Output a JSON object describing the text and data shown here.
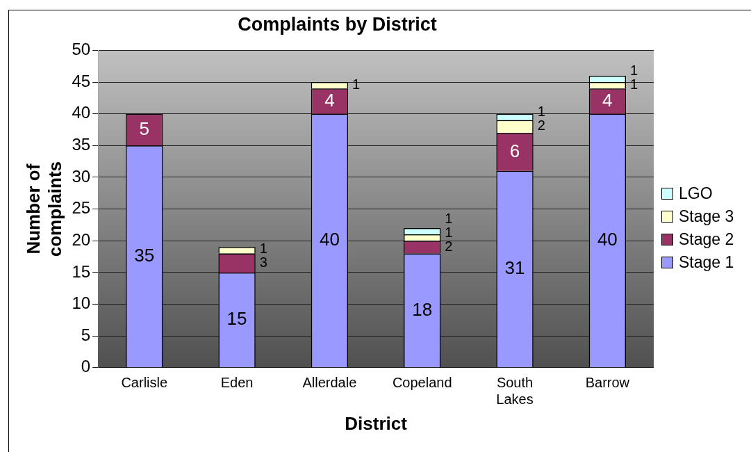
{
  "chart_data": {
    "type": "bar",
    "title": "Complaints by District",
    "xlabel": "District",
    "ylabel": "Number of complaints",
    "categories": [
      "Carlisle",
      "Eden",
      "Allerdale",
      "Copeland",
      "South Lakes",
      "Barrow"
    ],
    "stacked": true,
    "series": [
      {
        "name": "Stage 1",
        "color": "#9999ff",
        "values": [
          35,
          15,
          40,
          18,
          31,
          40
        ]
      },
      {
        "name": "Stage 2",
        "color": "#993366",
        "values": [
          5,
          3,
          4,
          2,
          6,
          4
        ]
      },
      {
        "name": "Stage 3",
        "color": "#ffffcc",
        "values": [
          null,
          1,
          1,
          1,
          2,
          1
        ]
      },
      {
        "name": "LGO",
        "color": "#ccffff",
        "values": [
          null,
          null,
          null,
          1,
          1,
          1
        ]
      }
    ],
    "ylim": [
      0,
      50
    ],
    "yticks": [
      0,
      5,
      10,
      15,
      20,
      25,
      30,
      35,
      40,
      45,
      50
    ],
    "grid": "y",
    "legend": "right",
    "data_labels": true
  }
}
